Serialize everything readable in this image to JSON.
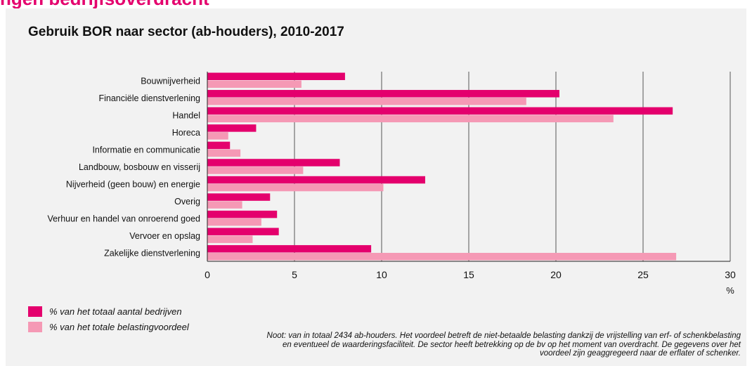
{
  "header": {
    "cut_title": "ngen bedrijfsoverdracht"
  },
  "colors": {
    "series1": "#e4006d",
    "series2": "#f599b5",
    "grid": "#555555",
    "panel": "#f2f2f2"
  },
  "chart_data": {
    "type": "bar",
    "orientation": "horizontal",
    "title": "Gebruik BOR naar sector (ab-houders), 2010-2017",
    "xlabel": "%",
    "ylabel": "",
    "xlim": [
      0,
      30
    ],
    "xticks": [
      0,
      5,
      10,
      15,
      20,
      25,
      30
    ],
    "grid": true,
    "legend_position": "bottom-left",
    "categories": [
      "Bouwnijverheid",
      "Financiële dienstverlening",
      "Handel",
      "Horeca",
      "Informatie en communicatie",
      "Landbouw, bosbouw en visserij",
      "Nijverheid (geen bouw) en energie",
      "Overig",
      "Verhuur en handel van onroerend goed",
      "Vervoer en opslag",
      "Zakelijke dienstverlening"
    ],
    "series": [
      {
        "name": "% van het totaal aantal bedrijven",
        "values": [
          7.9,
          20.2,
          26.7,
          2.8,
          1.3,
          7.6,
          12.5,
          3.6,
          4.0,
          4.1,
          9.4
        ]
      },
      {
        "name": "% van het totale belastingvoordeel",
        "values": [
          5.4,
          18.3,
          23.3,
          1.2,
          1.9,
          5.5,
          10.1,
          2.0,
          3.1,
          2.6,
          26.9
        ]
      }
    ]
  },
  "note": "Noot: van in totaal 2434 ab-houders. Het voordeel betreft de niet-betaalde belasting dankzij de vrijstelling van erf- of schenkbelasting en eventueel de waarderingsfaciliteit. De sector heeft betrekking op de bv op het moment van overdracht. De gegevens over het voordeel zijn geaggregeerd naar de erflater of schenker."
}
